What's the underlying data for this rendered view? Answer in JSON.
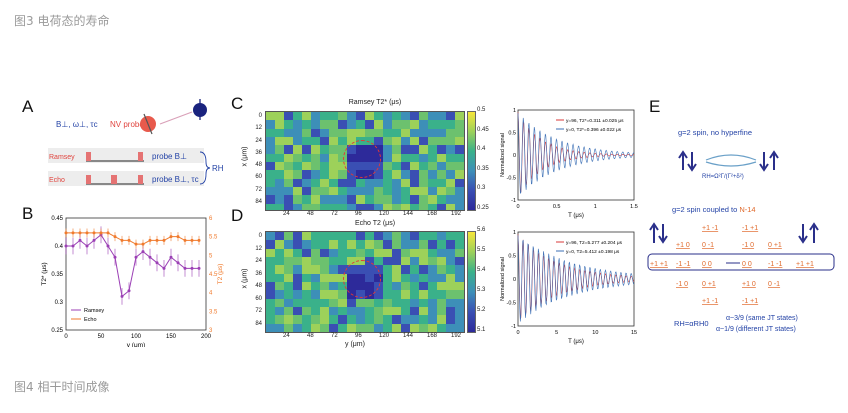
{
  "captions": {
    "fig3": "图3  电荷态的寿命",
    "fig4": "图4  相干时间成像"
  },
  "panels": {
    "a": "A",
    "b": "B",
    "c": "C",
    "d": "D",
    "e": "E"
  },
  "panel_a": {
    "params": "B⊥, ω⊥, τc",
    "nv_label": "NV probe",
    "ramsey": "Ramsey",
    "echo": "Echo",
    "probe_ramsey": "probe B⊥",
    "probe_echo": "probe B⊥, τc",
    "rate": "RH"
  },
  "panel_b": {
    "ylabel_left": "T2* (μs)",
    "ylabel_right": "T2 (μs)",
    "xlabel": "y (μm)",
    "legend": [
      "Ramsey",
      "Echo"
    ],
    "colors": {
      "ramsey": "#9b3fb5",
      "echo": "#f07a2c"
    }
  },
  "panel_c": {
    "title": "Ramsey T2* (μs)",
    "ylabel": "x (μm)",
    "yticks": [
      "0",
      "12",
      "24",
      "36",
      "48",
      "60",
      "72",
      "84"
    ],
    "xticks": [
      "24",
      "48",
      "72",
      "96",
      "120",
      "144",
      "168",
      "192"
    ],
    "cbar": [
      "0.5",
      "0.45",
      "0.4",
      "0.35",
      "0.3",
      "0.25"
    ]
  },
  "panel_d": {
    "title": "Echo T2 (μs)",
    "ylabel": "x (μm)",
    "xlabel": "y (μm)",
    "yticks": [
      "0",
      "12",
      "24",
      "36",
      "48",
      "60",
      "72",
      "84"
    ],
    "xticks": [
      "24",
      "48",
      "72",
      "96",
      "120",
      "144",
      "168",
      "192"
    ],
    "cbar": [
      "5.6",
      "5.5",
      "5.4",
      "5.3",
      "5.2",
      "5.1"
    ]
  },
  "signal_c": {
    "ylabel": "Normalized signal",
    "xlabel": "T (μs)",
    "xticks": [
      "0",
      "0.5",
      "1",
      "1.5"
    ],
    "yticks": [
      "1",
      "0.5",
      "0",
      "-0.5",
      "-1"
    ],
    "legend": [
      "y=96, T2*=0.311 ±0.025 μs",
      "y=0, T2*=0.396 ±0.022 μs"
    ]
  },
  "signal_d": {
    "ylabel": "Normalized signal",
    "xlabel": "T (μs)",
    "xticks": [
      "0",
      "5",
      "10",
      "15"
    ],
    "yticks": [
      "1",
      "0.5",
      "0",
      "-0.5",
      "-1"
    ],
    "legend": [
      "y=96, T2=5.277 ±0.204 μs",
      "y=0, T2=5.412 ±0.198 μs"
    ]
  },
  "panel_e": {
    "title1": "g=2 spin, no hyperfine",
    "formula1": "RH=Ω²Γ/(Γ²+δ²)",
    "title2": "g=2 spin coupled to ",
    "n14": "N-14",
    "row_top": [
      "+1 -1",
      "-1 +1"
    ],
    "row_mid1": [
      "+1 0",
      "0 -1",
      "-1 0",
      "0 +1"
    ],
    "row_center": [
      "+1 +1",
      "-1 -1",
      "0 0",
      "0 0",
      "-1 -1",
      "+1 +1"
    ],
    "row_mid2": [
      "-1 0",
      "0 +1",
      "+1 0",
      "0 -1"
    ],
    "row_bottom": [
      "+1 -1",
      "-1 +1"
    ],
    "formula2": "RH=αRH0",
    "alpha1": "α~3/9 (same JT states)",
    "alpha2": "α~1/9 (different JT states)"
  },
  "chart_data": [
    {
      "type": "line",
      "title": "",
      "xlabel": "y (μm)",
      "ylabel": "T2* (μs)",
      "xlim": [
        0,
        200
      ],
      "ylim": [
        0.25,
        0.45
      ],
      "y2lim": [
        3.0,
        6.0
      ],
      "series": [
        {
          "name": "Ramsey",
          "x": [
            0,
            10,
            20,
            30,
            40,
            50,
            60,
            70,
            80,
            90,
            100,
            110,
            120,
            130,
            140,
            150,
            160,
            170,
            180,
            190
          ],
          "values": [
            0.4,
            0.4,
            0.41,
            0.4,
            0.41,
            0.42,
            0.4,
            0.38,
            0.31,
            0.32,
            0.38,
            0.39,
            0.38,
            0.37,
            0.36,
            0.38,
            0.37,
            0.36,
            0.36,
            0.36
          ]
        },
        {
          "name": "Echo",
          "x": [
            0,
            10,
            20,
            30,
            40,
            50,
            60,
            70,
            80,
            90,
            100,
            110,
            120,
            130,
            140,
            150,
            160,
            170,
            180,
            190
          ],
          "values": [
            5.6,
            5.6,
            5.6,
            5.6,
            5.6,
            5.6,
            5.6,
            5.5,
            5.4,
            5.4,
            5.3,
            5.3,
            5.4,
            5.4,
            5.4,
            5.5,
            5.5,
            5.4,
            5.4,
            5.4
          ]
        }
      ]
    },
    {
      "type": "line",
      "xlabel": "T (μs)",
      "ylabel": "Normalized signal",
      "xlim": [
        0,
        1.5
      ],
      "ylim": [
        -1,
        1
      ],
      "series": [
        {
          "name": "y=96, T2*=0.311 ±0.025 μs",
          "T2": 0.311
        },
        {
          "name": "y=0, T2*=0.396 ±0.022 μs",
          "T2": 0.396
        }
      ]
    },
    {
      "type": "line",
      "xlabel": "T (μs)",
      "ylabel": "Normalized signal",
      "xlim": [
        0,
        15
      ],
      "ylim": [
        -1,
        1
      ],
      "series": [
        {
          "name": "y=96, T2=5.277 ±0.204 μs",
          "T2": 5.277
        },
        {
          "name": "y=0, T2=5.412 ±0.198 μs",
          "T2": 5.412
        }
      ]
    }
  ]
}
